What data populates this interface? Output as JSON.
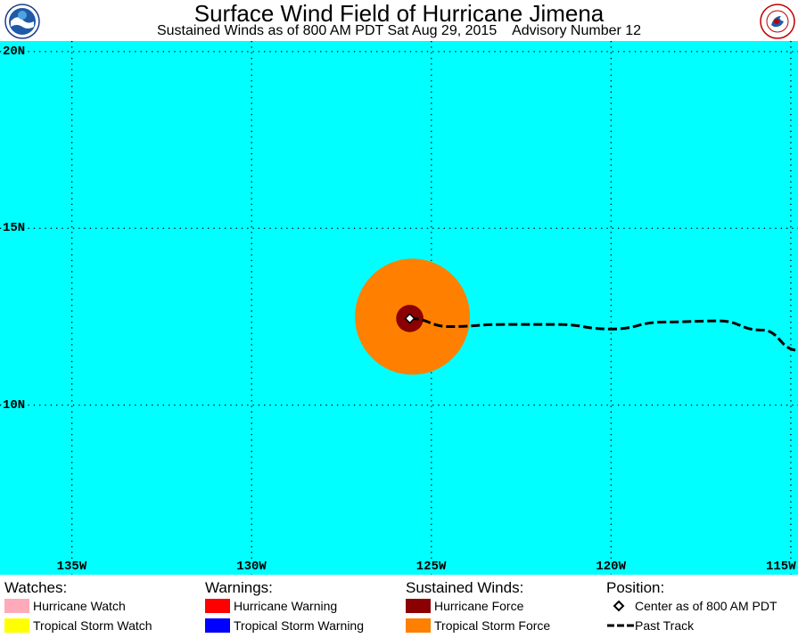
{
  "header": {
    "title": "Surface Wind Field of Hurricane Jimena",
    "subtitle": "Sustained Winds as of 800 AM PDT Sat Aug 29, 2015    Advisory Number 12",
    "logos": [
      "noaa-logo",
      "national-weather-service-logo"
    ]
  },
  "map": {
    "background_color": "#00ffff",
    "grid": "dotted",
    "lon_range": [
      -137,
      -114.8
    ],
    "lat_range": [
      5.2,
      20.3
    ],
    "lat_labels": [
      {
        "value": 20,
        "text": "20N"
      },
      {
        "value": 15,
        "text": "15N"
      },
      {
        "value": 10,
        "text": "10N"
      }
    ],
    "lon_labels": [
      {
        "value": -135,
        "text": "135W"
      },
      {
        "value": -130,
        "text": "130W"
      },
      {
        "value": -125,
        "text": "125W"
      },
      {
        "value": -120,
        "text": "120W"
      },
      {
        "value": -115,
        "text": "115W"
      }
    ],
    "storm_center": {
      "lon": -125.6,
      "lat": 12.45
    },
    "tropical_storm_force_radius_deg": 1.6,
    "hurricane_force_radius_deg": 0.38,
    "past_track": [
      {
        "lon": -125.6,
        "lat": 12.45
      },
      {
        "lon": -124.5,
        "lat": 12.22
      },
      {
        "lon": -123.0,
        "lat": 12.28
      },
      {
        "lon": -121.5,
        "lat": 12.28
      },
      {
        "lon": -120.0,
        "lat": 12.15
      },
      {
        "lon": -118.5,
        "lat": 12.35
      },
      {
        "lon": -117.0,
        "lat": 12.38
      },
      {
        "lon": -115.8,
        "lat": 12.12
      },
      {
        "lon": -114.8,
        "lat": 11.55
      }
    ],
    "colors": {
      "tropical_storm_force": "#ff8000",
      "hurricane_force": "#8b0000",
      "track": "#000000"
    }
  },
  "legend": {
    "watches": {
      "heading": "Watches:",
      "items": [
        {
          "label": "Hurricane Watch",
          "color": "#ffaabb"
        },
        {
          "label": "Tropical Storm Watch",
          "color": "#ffff00"
        }
      ]
    },
    "warnings": {
      "heading": "Warnings:",
      "items": [
        {
          "label": "Hurricane Warning",
          "color": "#ff0000"
        },
        {
          "label": "Tropical Storm Warning",
          "color": "#0000ff"
        }
      ]
    },
    "winds": {
      "heading": "Sustained Winds:",
      "items": [
        {
          "label": "Hurricane Force",
          "color": "#8b0000"
        },
        {
          "label": "Tropical Storm Force",
          "color": "#ff8000"
        }
      ]
    },
    "position": {
      "heading": "Position:",
      "items": [
        {
          "label": "Center as of 800 AM PDT",
          "icon": "diamond-icon"
        },
        {
          "label": "Past Track",
          "icon": "dashed-line-icon"
        }
      ]
    }
  }
}
